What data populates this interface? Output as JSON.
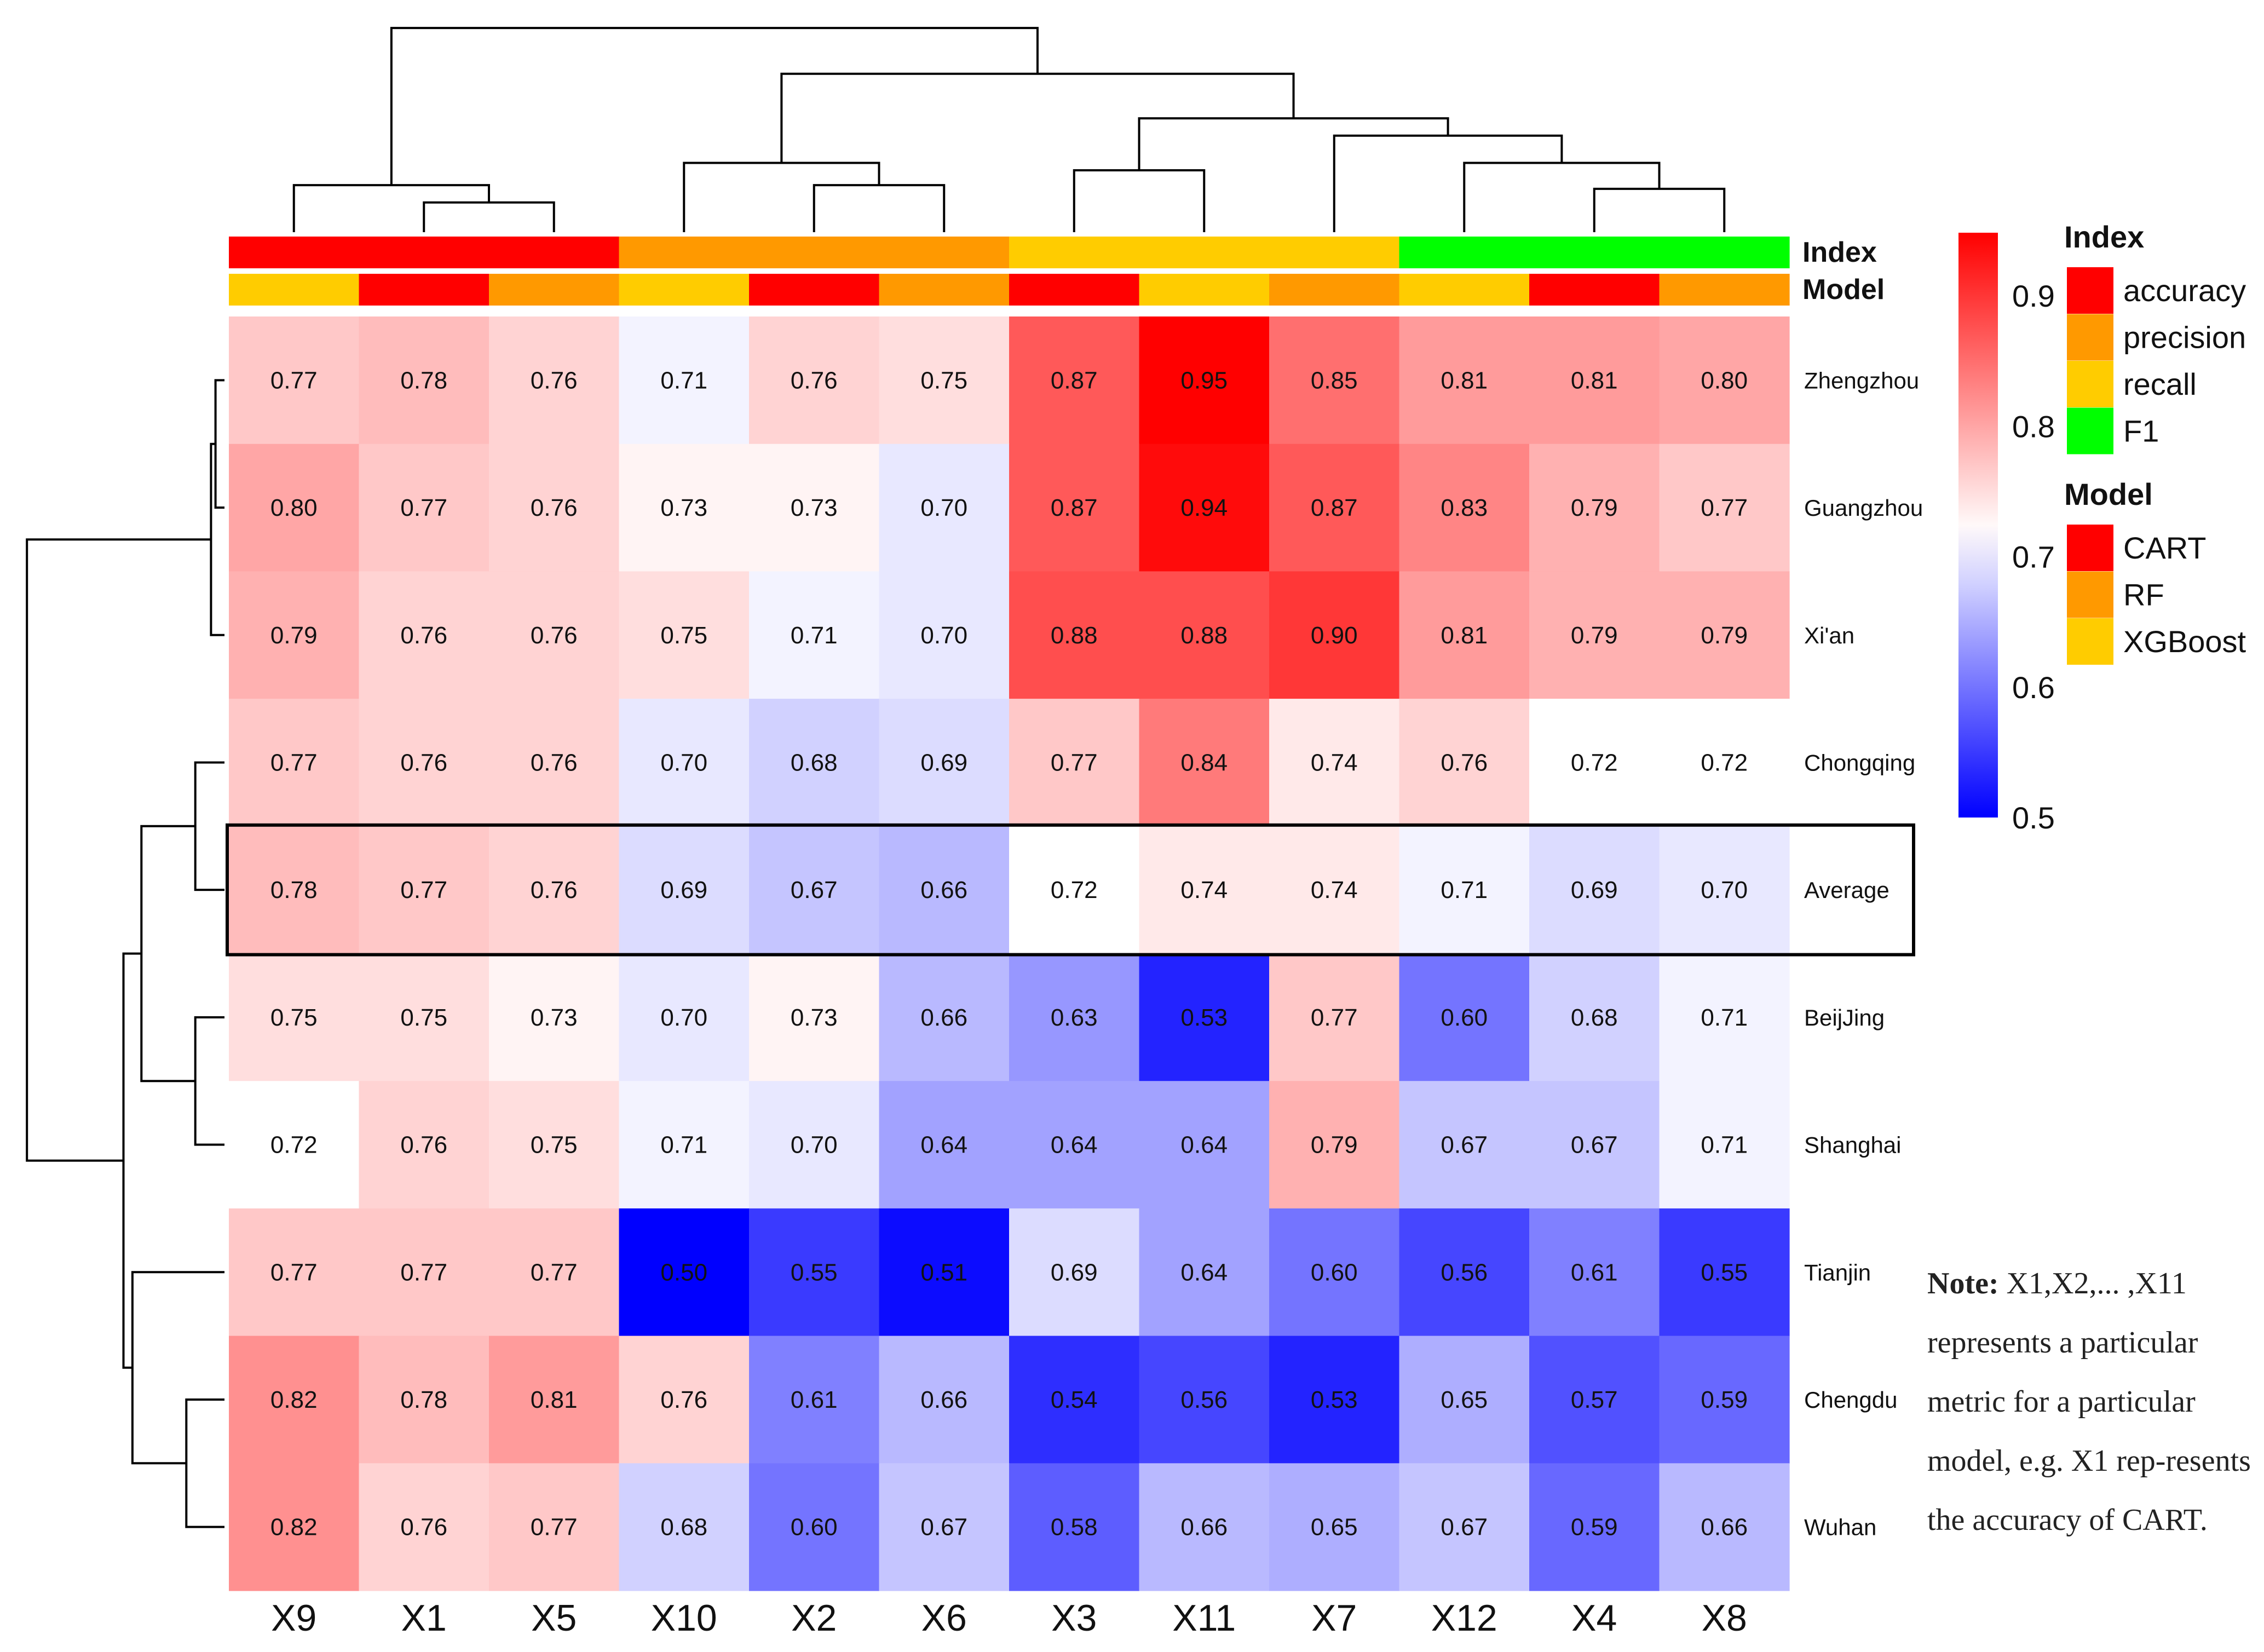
{
  "chart_data": {
    "type": "heatmap",
    "title": "",
    "columns": [
      "X9",
      "X1",
      "X5",
      "X10",
      "X2",
      "X6",
      "X3",
      "X11",
      "X7",
      "X12",
      "X4",
      "X8"
    ],
    "rows": [
      "Zhengzhou",
      "Guangzhou",
      "Xi'an",
      "Chongqing",
      "Average",
      "BeijJing",
      "Shanghai",
      "Tianjin",
      "Chengdu",
      "Wuhan"
    ],
    "values": [
      [
        0.77,
        0.78,
        0.76,
        0.71,
        0.76,
        0.75,
        0.87,
        0.95,
        0.85,
        0.81,
        0.81,
        0.8
      ],
      [
        0.8,
        0.77,
        0.76,
        0.73,
        0.73,
        0.7,
        0.87,
        0.94,
        0.87,
        0.83,
        0.79,
        0.77
      ],
      [
        0.79,
        0.76,
        0.76,
        0.75,
        0.71,
        0.7,
        0.88,
        0.88,
        0.9,
        0.81,
        0.79,
        0.79
      ],
      [
        0.77,
        0.76,
        0.76,
        0.7,
        0.68,
        0.69,
        0.77,
        0.84,
        0.74,
        0.76,
        0.72,
        0.72
      ],
      [
        0.78,
        0.77,
        0.76,
        0.69,
        0.67,
        0.66,
        0.72,
        0.74,
        0.74,
        0.71,
        0.69,
        0.7
      ],
      [
        0.75,
        0.75,
        0.73,
        0.7,
        0.73,
        0.66,
        0.63,
        0.53,
        0.77,
        0.6,
        0.68,
        0.71
      ],
      [
        0.72,
        0.76,
        0.75,
        0.71,
        0.7,
        0.64,
        0.64,
        0.64,
        0.79,
        0.67,
        0.67,
        0.71
      ],
      [
        0.77,
        0.77,
        0.77,
        0.5,
        0.55,
        0.51,
        0.69,
        0.64,
        0.6,
        0.56,
        0.61,
        0.55
      ],
      [
        0.82,
        0.78,
        0.81,
        0.76,
        0.61,
        0.66,
        0.54,
        0.56,
        0.53,
        0.65,
        0.57,
        0.59
      ],
      [
        0.82,
        0.76,
        0.77,
        0.68,
        0.6,
        0.67,
        0.58,
        0.66,
        0.65,
        0.67,
        0.59,
        0.66
      ]
    ],
    "highlighted_row": "Average",
    "annotation_tracks": [
      {
        "name": "Index",
        "values": [
          "accuracy",
          "accuracy",
          "accuracy",
          "precision",
          "precision",
          "precision",
          "recall",
          "recall",
          "recall",
          "F1",
          "F1",
          "F1"
        ]
      },
      {
        "name": "Model",
        "values": [
          "XGBoost",
          "CART",
          "RF",
          "XGBoost",
          "CART",
          "RF",
          "CART",
          "XGBoost",
          "RF",
          "XGBoost",
          "CART",
          "RF"
        ]
      }
    ],
    "legend": {
      "colorbar": {
        "min": 0.5,
        "mid": 0.72,
        "max": 0.95,
        "ticks": [
          "0.9",
          "0.8",
          "0.7",
          "0.6",
          "0.5"
        ],
        "colors": {
          "low": "#0000ff",
          "mid": "#ffffff",
          "high": "#ff0000"
        }
      },
      "groups": [
        {
          "title": "Index",
          "items": [
            {
              "label": "accuracy",
              "color": "#ff0000"
            },
            {
              "label": "precision",
              "color": "#ff9900"
            },
            {
              "label": "recall",
              "color": "#ffcc00"
            },
            {
              "label": "F1",
              "color": "#00ff00"
            }
          ]
        },
        {
          "title": "Model",
          "items": [
            {
              "label": "CART",
              "color": "#ff0000"
            },
            {
              "label": "RF",
              "color": "#ff9900"
            },
            {
              "label": "XGBoost",
              "color": "#ffcc00"
            }
          ]
        }
      ]
    },
    "col_dendrogram": [
      [
        1,
        2,
        0.24
      ],
      [
        0,
        12,
        0.38
      ],
      [
        4,
        5,
        0.38
      ],
      [
        3,
        14,
        0.56
      ],
      [
        6,
        7,
        0.5
      ],
      [
        10,
        11,
        0.35
      ],
      [
        9,
        17,
        0.56
      ],
      [
        8,
        18,
        0.78
      ],
      [
        16,
        19,
        0.92
      ],
      [
        15,
        20,
        1.28
      ],
      [
        13,
        21,
        1.65
      ]
    ],
    "row_dendrogram": [
      [
        0,
        1,
        0.08
      ],
      [
        10,
        2,
        0.12
      ],
      [
        3,
        4,
        0.26
      ],
      [
        5,
        6,
        0.26
      ],
      [
        12,
        13,
        0.74
      ],
      [
        8,
        9,
        0.34
      ],
      [
        7,
        15,
        0.82
      ],
      [
        14,
        16,
        0.9
      ],
      [
        11,
        17,
        1.76
      ]
    ]
  },
  "note": {
    "label": "Note:",
    "text": " X1,X2,... ,X11 represents a particular metric for a particular model, e.g. X1 rep-resents the accuracy of CART."
  }
}
